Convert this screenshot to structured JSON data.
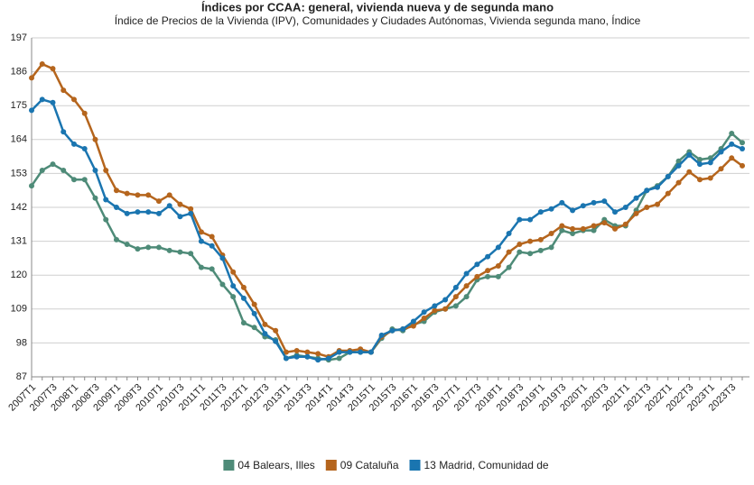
{
  "chart_data": {
    "type": "line",
    "title": "Índices por CCAA: general, vivienda nueva y de segunda mano",
    "subtitle": "Índice de Precios de la Vivienda (IPV), Comunidades y Ciudades Autónomas, Vivienda segunda mano, Índice",
    "categories": [
      "2007T1",
      null,
      "2007T3",
      null,
      "2008T1",
      null,
      "2008T3",
      null,
      "2009T1",
      null,
      "2009T3",
      null,
      "2010T1",
      null,
      "2010T3",
      null,
      "2011T1",
      null,
      "2011T3",
      null,
      "2012T1",
      null,
      "2012T3",
      null,
      "2013T1",
      null,
      "2013T3",
      null,
      "2014T1",
      null,
      "2014T3",
      null,
      "2015T1",
      null,
      "2015T3",
      null,
      "2016T1",
      null,
      "2016T3",
      null,
      "2017T1",
      null,
      "2017T3",
      null,
      "2018T1",
      null,
      "2018T3",
      null,
      "2019T1",
      null,
      "2019T3",
      null,
      "2020T1",
      null,
      "2020T3",
      null,
      "2021T1",
      null,
      "2021T3",
      null,
      "2022T1",
      null,
      "2022T3",
      null,
      "2023T1",
      null,
      "2023T3",
      null
    ],
    "series": [
      {
        "name": "04 Balears, Illes",
        "color": "#4e8b78",
        "values": [
          149,
          154,
          156,
          154,
          151,
          151,
          145,
          138,
          131.5,
          130,
          128.5,
          129,
          129,
          128,
          127.5,
          127,
          122.5,
          122,
          117,
          113,
          104.5,
          103,
          100,
          99,
          93,
          94,
          93.5,
          93,
          92.5,
          93,
          95,
          95,
          95,
          99.5,
          102.5,
          102,
          104,
          105,
          108,
          109,
          110,
          113,
          118.5,
          119.5,
          119.5,
          122.5,
          127.5,
          127,
          128,
          129,
          134.5,
          133.5,
          134.5,
          134.5,
          138,
          136,
          136,
          141,
          147.5,
          149,
          152,
          157,
          160,
          157.5,
          158,
          161,
          166,
          163
        ]
      },
      {
        "name": "09 Cataluña",
        "color": "#b5651d",
        "values": [
          184,
          188.5,
          187,
          180,
          177,
          172.5,
          164,
          154,
          147.5,
          146.5,
          146,
          146,
          144,
          146,
          143,
          141.5,
          134,
          132.5,
          126.5,
          121,
          116,
          110.5,
          104,
          102,
          95,
          95.5,
          95,
          94.5,
          93.5,
          95.5,
          95.5,
          96,
          95,
          100,
          102,
          102.5,
          103.5,
          106,
          108.5,
          109,
          113,
          116.5,
          119.5,
          121.5,
          123,
          127.5,
          130,
          131,
          131.5,
          133.5,
          136,
          135,
          135,
          136,
          137,
          135,
          136.5,
          140,
          142,
          143,
          146.5,
          150,
          153.5,
          151,
          151.5,
          154.5,
          158,
          155.5
        ]
      },
      {
        "name": "13 Madrid, Comunidad de",
        "color": "#1a75b0",
        "values": [
          173.5,
          177,
          176,
          166.5,
          162.5,
          161,
          154,
          144.5,
          142,
          140,
          140.5,
          140.5,
          140,
          142.5,
          139,
          140,
          131,
          129.5,
          125.5,
          116.5,
          112.5,
          107.5,
          101,
          98.5,
          93,
          93.5,
          93.5,
          92.5,
          93,
          95,
          95,
          95,
          95,
          100.5,
          102,
          102.5,
          105,
          108,
          110,
          112,
          116,
          120.5,
          123.5,
          126,
          129,
          133.5,
          138,
          138,
          140.5,
          141.5,
          143.5,
          141,
          142.5,
          143.5,
          144,
          140.5,
          142,
          145,
          147.5,
          148.5,
          152,
          155.5,
          159,
          156,
          156.5,
          160,
          162.5,
          161
        ]
      }
    ],
    "ylim": [
      87,
      197
    ],
    "yticks": [
      87,
      98,
      109,
      120,
      131,
      142,
      153,
      164,
      175,
      186,
      197
    ],
    "grid": true
  }
}
